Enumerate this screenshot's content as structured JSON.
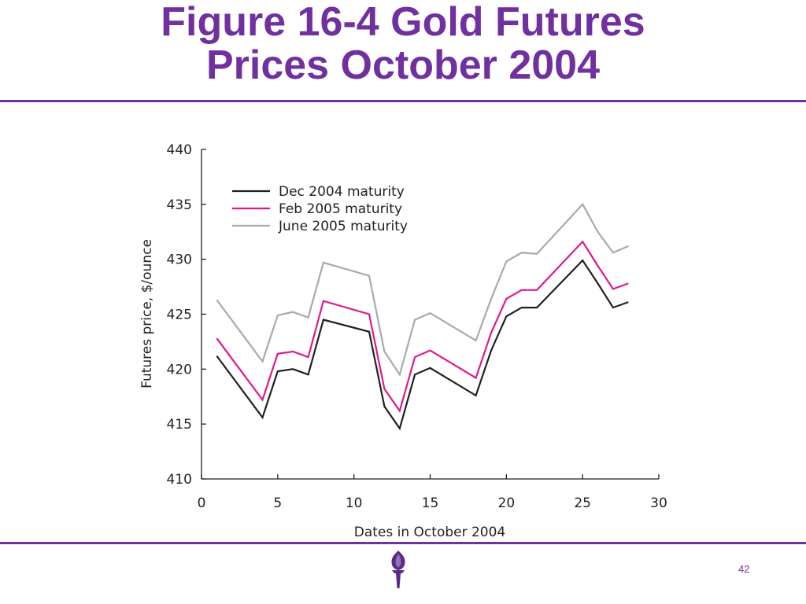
{
  "slide": {
    "title_line1": "Figure 16-4 Gold Futures",
    "title_line2": "Prices October 2004",
    "page_number": "42",
    "accent_color": "#7030a0",
    "logo_icon": "torch-icon"
  },
  "chart_data": {
    "type": "line",
    "title": "",
    "xlabel": "Dates in October 2004",
    "ylabel": "Futures price, $/ounce",
    "xlim": [
      0,
      30
    ],
    "ylim": [
      410,
      440
    ],
    "x_ticks": [
      0,
      5,
      10,
      15,
      20,
      25,
      30
    ],
    "y_ticks": [
      410,
      415,
      420,
      425,
      430,
      435,
      440
    ],
    "grid": false,
    "legend_position": "top-left",
    "x": [
      1,
      4,
      5,
      6,
      7,
      8,
      11,
      12,
      13,
      14,
      15,
      18,
      19,
      20,
      21,
      22,
      25,
      26,
      27,
      28
    ],
    "series": [
      {
        "name": "Dec 2004 maturity",
        "color": "#231f20",
        "values": [
          421.2,
          415.6,
          419.8,
          420.0,
          419.5,
          424.5,
          423.4,
          416.6,
          414.6,
          419.5,
          420.1,
          417.6,
          421.7,
          424.8,
          425.6,
          425.6,
          429.9,
          427.8,
          425.6,
          426.1
        ]
      },
      {
        "name": "Feb 2005 maturity",
        "color": "#e0198c",
        "values": [
          422.8,
          417.2,
          421.4,
          421.6,
          421.1,
          426.2,
          425.0,
          418.2,
          416.2,
          421.1,
          421.7,
          419.2,
          423.3,
          426.4,
          427.2,
          427.2,
          431.6,
          429.4,
          427.3,
          427.8
        ]
      },
      {
        "name": "June 2005 maturity",
        "color": "#a7a9ac",
        "values": [
          426.3,
          420.7,
          424.9,
          425.2,
          424.7,
          429.7,
          428.5,
          421.6,
          419.5,
          424.5,
          425.1,
          422.6,
          426.4,
          429.8,
          430.6,
          430.5,
          435.0,
          432.5,
          430.6,
          431.2
        ]
      }
    ]
  }
}
